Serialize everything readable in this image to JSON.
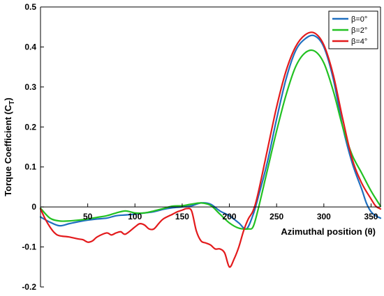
{
  "chart_data": {
    "type": "line",
    "title": "",
    "xlabel": "Azimuthal position (θ)",
    "ylabel": "Torque Coefficient (C",
    "ylabel_sub": "T",
    "ylabel_close": ")",
    "xlim": [
      0,
      360
    ],
    "ylim": [
      -0.2,
      0.5
    ],
    "xticks": [
      {
        "value": 50,
        "label": "50"
      },
      {
        "value": 100,
        "label": "100"
      },
      {
        "value": 150,
        "label": "150"
      },
      {
        "value": 200,
        "label": "200"
      },
      {
        "value": 250,
        "label": "250"
      },
      {
        "value": 300,
        "label": "300"
      },
      {
        "value": 350,
        "label": "350"
      }
    ],
    "yticks": [
      {
        "value": 0.5,
        "label": "0.5"
      },
      {
        "value": 0.4,
        "label": "0.4"
      },
      {
        "value": 0.3,
        "label": "0.3"
      },
      {
        "value": 0.2,
        "label": "0.2"
      },
      {
        "value": 0.1,
        "label": "0.1"
      },
      {
        "value": 0.0,
        "label": "0"
      },
      {
        "value": -0.1,
        "label": "-0.1"
      },
      {
        "value": -0.2,
        "label": "-0.2"
      }
    ],
    "grid": false,
    "legend_position": "top-right",
    "series": [
      {
        "name": "β=0°",
        "color": "#1f6fbf",
        "x": [
          0,
          10,
          20,
          30,
          40,
          50,
          60,
          70,
          80,
          90,
          100,
          110,
          120,
          130,
          140,
          150,
          160,
          170,
          180,
          190,
          200,
          210,
          218,
          225,
          230,
          240,
          250,
          260,
          270,
          280,
          290,
          300,
          310,
          320,
          330,
          340,
          345,
          350,
          355,
          360
        ],
        "y": [
          -0.025,
          -0.038,
          -0.047,
          -0.042,
          -0.037,
          -0.033,
          -0.03,
          -0.028,
          -0.022,
          -0.02,
          -0.018,
          -0.015,
          -0.012,
          -0.006,
          -0.002,
          0.0,
          0.003,
          0.01,
          0.007,
          -0.01,
          -0.022,
          -0.04,
          -0.055,
          -0.02,
          0.02,
          0.11,
          0.22,
          0.32,
          0.39,
          0.42,
          0.428,
          0.4,
          0.32,
          0.2,
          0.11,
          0.045,
          0.01,
          -0.012,
          -0.022,
          -0.028
        ]
      },
      {
        "name": "β=2°",
        "color": "#22c122",
        "x": [
          0,
          10,
          20,
          30,
          40,
          50,
          60,
          70,
          80,
          90,
          100,
          110,
          120,
          130,
          140,
          150,
          160,
          170,
          180,
          190,
          200,
          210,
          220,
          225,
          230,
          240,
          250,
          260,
          270,
          280,
          290,
          300,
          310,
          320,
          330,
          340,
          350,
          360
        ],
        "y": [
          -0.003,
          -0.028,
          -0.035,
          -0.035,
          -0.033,
          -0.03,
          -0.026,
          -0.022,
          -0.015,
          -0.01,
          -0.015,
          -0.015,
          -0.01,
          -0.004,
          0.002,
          0.003,
          0.007,
          0.01,
          0.004,
          -0.018,
          -0.04,
          -0.053,
          -0.055,
          -0.05,
          -0.01,
          0.09,
          0.19,
          0.28,
          0.35,
          0.385,
          0.39,
          0.36,
          0.29,
          0.2,
          0.13,
          0.085,
          0.04,
          0.002
        ]
      },
      {
        "name": "β=4°",
        "color": "#e31a1c",
        "x": [
          0,
          5,
          10,
          15,
          20,
          30,
          40,
          45,
          50,
          55,
          60,
          70,
          75,
          80,
          85,
          90,
          100,
          105,
          110,
          115,
          120,
          125,
          130,
          140,
          145,
          150,
          155,
          160,
          165,
          170,
          175,
          180,
          185,
          190,
          195,
          200,
          205,
          210,
          215,
          220,
          225,
          230,
          240,
          250,
          260,
          270,
          280,
          290,
          300,
          310,
          320,
          330,
          340,
          350,
          355,
          360
        ],
        "y": [
          -0.005,
          -0.03,
          -0.05,
          -0.065,
          -0.072,
          -0.075,
          -0.08,
          -0.082,
          -0.088,
          -0.085,
          -0.075,
          -0.065,
          -0.07,
          -0.065,
          -0.062,
          -0.068,
          -0.05,
          -0.042,
          -0.045,
          -0.055,
          -0.055,
          -0.042,
          -0.03,
          -0.018,
          -0.012,
          -0.008,
          -0.004,
          -0.01,
          -0.06,
          -0.085,
          -0.09,
          -0.095,
          -0.105,
          -0.105,
          -0.115,
          -0.15,
          -0.13,
          -0.1,
          -0.06,
          -0.03,
          -0.01,
          0.03,
          0.14,
          0.25,
          0.34,
          0.4,
          0.43,
          0.435,
          0.405,
          0.33,
          0.22,
          0.12,
          0.06,
          0.02,
          0.002,
          -0.005
        ]
      }
    ]
  }
}
